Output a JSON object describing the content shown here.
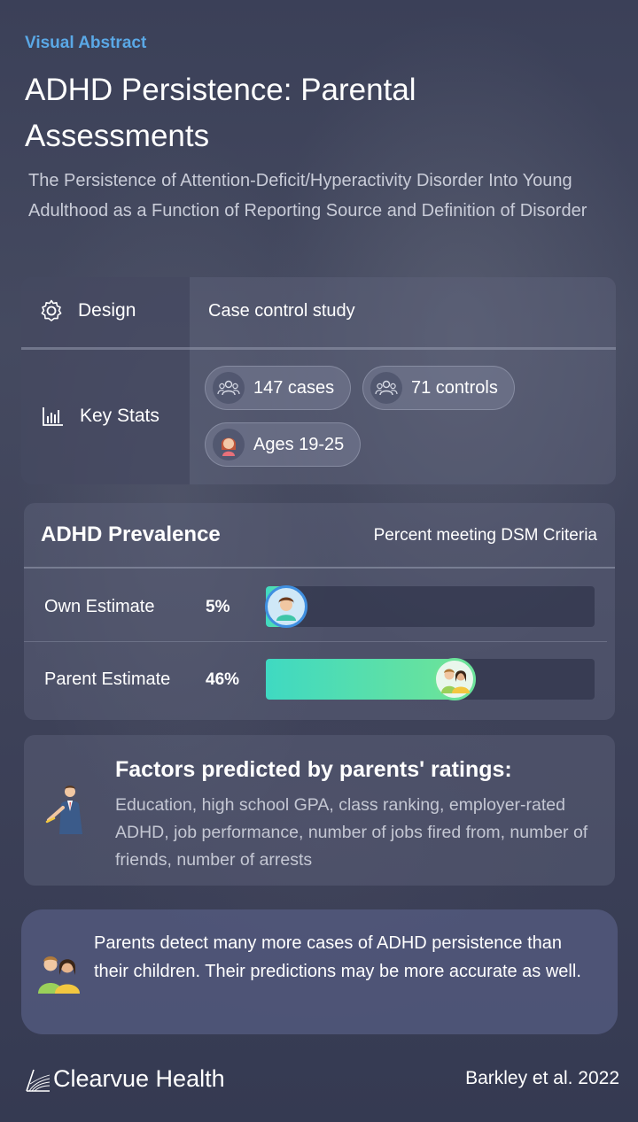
{
  "header": {
    "eyebrow": "Visual Abstract",
    "title": "ADHD Persistence: Parental Assessments",
    "subtitle": "The Persistence of Attention-Deficit/Hyperactivity Disorder Into Young Adulthood as a Function of Reporting Source and Definition of Disorder"
  },
  "study": {
    "design_label": "Design",
    "design_value": "Case control study",
    "stats_label": "Key Stats",
    "stats": [
      {
        "label": "147 cases",
        "icon": "group-icon"
      },
      {
        "label": "71 controls",
        "icon": "group-icon"
      },
      {
        "label": "Ages 19-25",
        "icon": "young-adult-icon"
      }
    ]
  },
  "prevalence": {
    "title": "ADHD Prevalence",
    "subtitle": "Percent meeting DSM Criteria",
    "rows": [
      {
        "label": "Own Estimate",
        "value_text": "5%",
        "value": 5,
        "icon": "young-man-icon"
      },
      {
        "label": "Parent Estimate",
        "value_text": "46%",
        "value": 46,
        "icon": "parents-icon"
      }
    ]
  },
  "factors": {
    "title": "Factors predicted by parents' ratings:",
    "body": "Education, high school GPA, class ranking, employer-rated ADHD, job performance, number of jobs fired from, number of friends, number of arrests",
    "icon": "teacher-icon"
  },
  "conclusion": {
    "text": "Parents detect many more cases of ADHD persistence than their children. Their predictions may be more accurate as well.",
    "icon": "parents-icon"
  },
  "footer": {
    "brand": "Clearvue Health",
    "citation": "Barkley et al. 2022"
  },
  "colors": {
    "accent": "#5aa8e6",
    "bar_start": "#3fd9c2",
    "bar_end": "#6be39a"
  }
}
